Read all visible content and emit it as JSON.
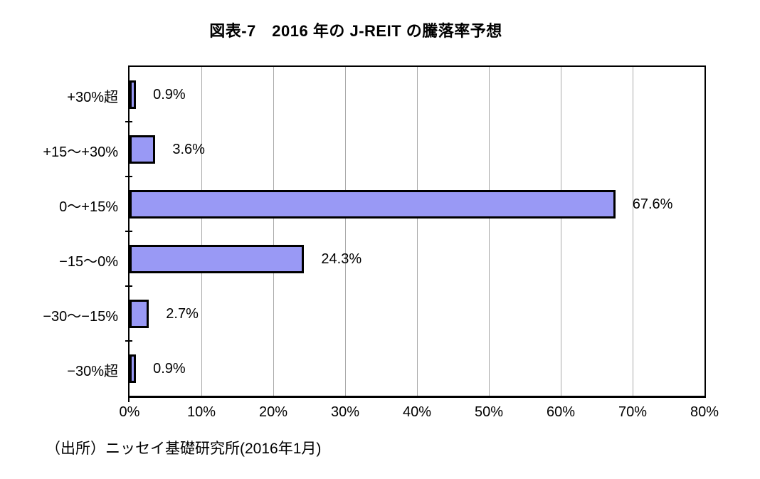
{
  "title": "図表-7　2016 年の J-REIT の騰落率予想",
  "source": "（出所）ニッセイ基礎研究所(2016年1月)",
  "chart_data": {
    "type": "bar",
    "orientation": "horizontal",
    "title": "図表-7　2016 年の J-REIT の騰落率予想",
    "categories": [
      "+30%超",
      "+15〜+30%",
      "0〜+15%",
      "−15〜0%",
      "−30〜−15%",
      "−30%超"
    ],
    "values": [
      0.9,
      3.6,
      67.6,
      24.3,
      2.7,
      0.9
    ],
    "value_labels": [
      "0.9%",
      "3.6%",
      "67.6%",
      "24.3%",
      "2.7%",
      "0.9%"
    ],
    "xlabel": "",
    "ylabel": "",
    "xlim": [
      0,
      80
    ],
    "x_ticks": [
      "0%",
      "10%",
      "20%",
      "30%",
      "40%",
      "50%",
      "60%",
      "70%",
      "80%"
    ],
    "grid": true,
    "legend": "none",
    "colors": {
      "bar_fill": "#9999F5",
      "bar_border": "#000000",
      "gridline": "#A9A9A9",
      "axis": "#000000",
      "background": "#FFFFFF"
    }
  }
}
